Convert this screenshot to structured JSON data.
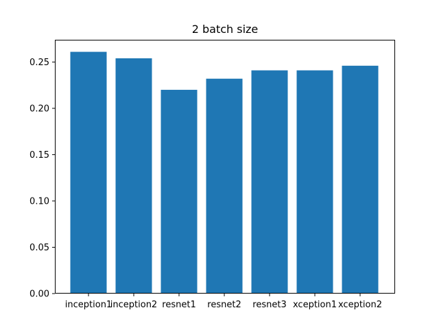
{
  "chart_data": {
    "type": "bar",
    "title": "2 batch size",
    "xlabel": "",
    "ylabel": "",
    "categories": [
      "inception1",
      "inception2",
      "resnet1",
      "resnet2",
      "resnet3",
      "xception1",
      "xception2"
    ],
    "values": [
      0.261,
      0.254,
      0.22,
      0.232,
      0.241,
      0.241,
      0.246
    ],
    "ylim": [
      0,
      0.274
    ],
    "yticks": [
      "0.00",
      "0.05",
      "0.10",
      "0.15",
      "0.20",
      "0.25"
    ],
    "bar_color": "#1f77b4",
    "grid": false,
    "legend": "none"
  }
}
